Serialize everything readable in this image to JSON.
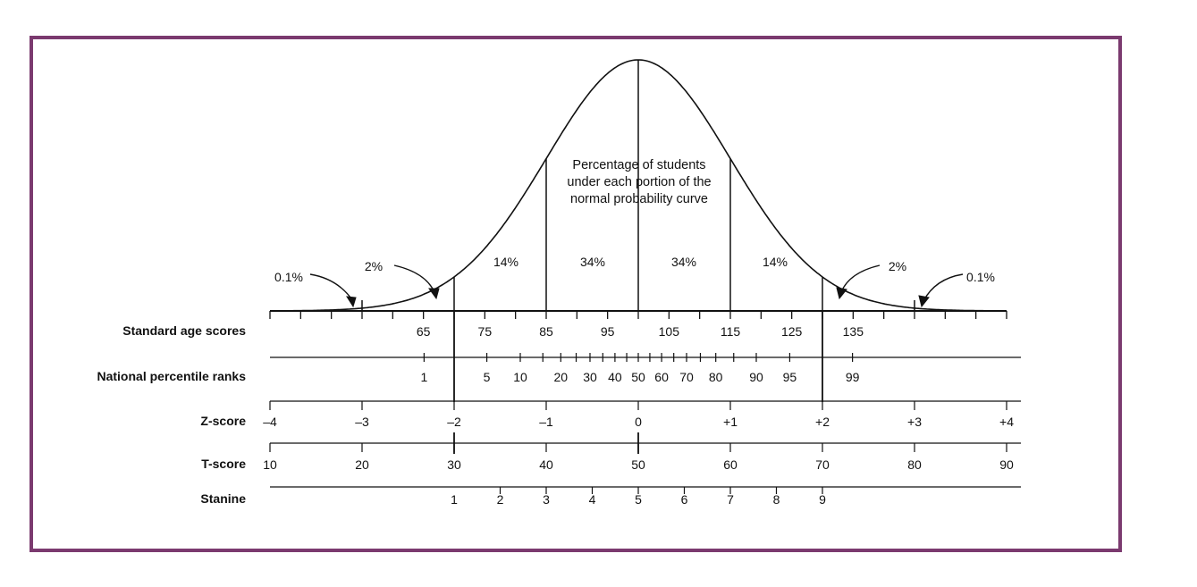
{
  "caption": {
    "line1": "Percentage of students",
    "line2": "under each portion of the",
    "line3": "normal probability curve"
  },
  "region_percentages": [
    "0.1%",
    "2%",
    "14%",
    "34%",
    "34%",
    "14%",
    "2%",
    "0.1%"
  ],
  "rows": {
    "standard_age_scores": {
      "label": "Standard age scores",
      "values": [
        "65",
        "75",
        "85",
        "95",
        "105",
        "115",
        "125",
        "135"
      ]
    },
    "national_percentile_ranks": {
      "label": "National percentile ranks",
      "values": [
        "1",
        "5",
        "10",
        "20",
        "30",
        "40",
        "50",
        "60",
        "70",
        "80",
        "90",
        "95",
        "99"
      ]
    },
    "z_score": {
      "label": "Z-score",
      "values": [
        "–4",
        "–3",
        "–2",
        "–1",
        "0",
        "+1",
        "+2",
        "+3",
        "+4"
      ]
    },
    "t_score": {
      "label": "T-score",
      "values": [
        "10",
        "20",
        "30",
        "40",
        "50",
        "60",
        "70",
        "80",
        "90"
      ]
    },
    "stanine": {
      "label": "Stanine",
      "values": [
        "1",
        "2",
        "3",
        "4",
        "5",
        "6",
        "7",
        "8",
        "9"
      ]
    }
  },
  "colors": {
    "frame": "#7b3a6f",
    "ink": "#111111"
  }
}
